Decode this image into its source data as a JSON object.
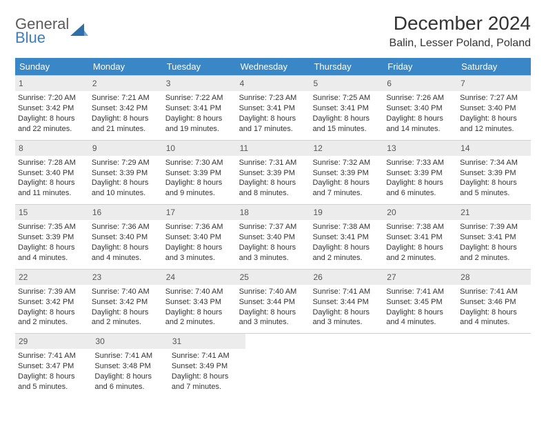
{
  "brand": {
    "line1": "General",
    "line2": "Blue"
  },
  "logo_colors": {
    "triangle": "#2f6fa8",
    "text_gray": "#5a5a5a",
    "text_blue": "#3a7fbf"
  },
  "title": "December 2024",
  "location": "Balin, Lesser Poland, Poland",
  "header_bg": "#3a87c7",
  "daynum_bg": "#ececec",
  "weekdays": [
    "Sunday",
    "Monday",
    "Tuesday",
    "Wednesday",
    "Thursday",
    "Friday",
    "Saturday"
  ],
  "weeks": [
    [
      {
        "n": "1",
        "sr": "Sunrise: 7:20 AM",
        "ss": "Sunset: 3:42 PM",
        "d1": "Daylight: 8 hours",
        "d2": "and 22 minutes."
      },
      {
        "n": "2",
        "sr": "Sunrise: 7:21 AM",
        "ss": "Sunset: 3:42 PM",
        "d1": "Daylight: 8 hours",
        "d2": "and 21 minutes."
      },
      {
        "n": "3",
        "sr": "Sunrise: 7:22 AM",
        "ss": "Sunset: 3:41 PM",
        "d1": "Daylight: 8 hours",
        "d2": "and 19 minutes."
      },
      {
        "n": "4",
        "sr": "Sunrise: 7:23 AM",
        "ss": "Sunset: 3:41 PM",
        "d1": "Daylight: 8 hours",
        "d2": "and 17 minutes."
      },
      {
        "n": "5",
        "sr": "Sunrise: 7:25 AM",
        "ss": "Sunset: 3:41 PM",
        "d1": "Daylight: 8 hours",
        "d2": "and 15 minutes."
      },
      {
        "n": "6",
        "sr": "Sunrise: 7:26 AM",
        "ss": "Sunset: 3:40 PM",
        "d1": "Daylight: 8 hours",
        "d2": "and 14 minutes."
      },
      {
        "n": "7",
        "sr": "Sunrise: 7:27 AM",
        "ss": "Sunset: 3:40 PM",
        "d1": "Daylight: 8 hours",
        "d2": "and 12 minutes."
      }
    ],
    [
      {
        "n": "8",
        "sr": "Sunrise: 7:28 AM",
        "ss": "Sunset: 3:40 PM",
        "d1": "Daylight: 8 hours",
        "d2": "and 11 minutes."
      },
      {
        "n": "9",
        "sr": "Sunrise: 7:29 AM",
        "ss": "Sunset: 3:39 PM",
        "d1": "Daylight: 8 hours",
        "d2": "and 10 minutes."
      },
      {
        "n": "10",
        "sr": "Sunrise: 7:30 AM",
        "ss": "Sunset: 3:39 PM",
        "d1": "Daylight: 8 hours",
        "d2": "and 9 minutes."
      },
      {
        "n": "11",
        "sr": "Sunrise: 7:31 AM",
        "ss": "Sunset: 3:39 PM",
        "d1": "Daylight: 8 hours",
        "d2": "and 8 minutes."
      },
      {
        "n": "12",
        "sr": "Sunrise: 7:32 AM",
        "ss": "Sunset: 3:39 PM",
        "d1": "Daylight: 8 hours",
        "d2": "and 7 minutes."
      },
      {
        "n": "13",
        "sr": "Sunrise: 7:33 AM",
        "ss": "Sunset: 3:39 PM",
        "d1": "Daylight: 8 hours",
        "d2": "and 6 minutes."
      },
      {
        "n": "14",
        "sr": "Sunrise: 7:34 AM",
        "ss": "Sunset: 3:39 PM",
        "d1": "Daylight: 8 hours",
        "d2": "and 5 minutes."
      }
    ],
    [
      {
        "n": "15",
        "sr": "Sunrise: 7:35 AM",
        "ss": "Sunset: 3:39 PM",
        "d1": "Daylight: 8 hours",
        "d2": "and 4 minutes."
      },
      {
        "n": "16",
        "sr": "Sunrise: 7:36 AM",
        "ss": "Sunset: 3:40 PM",
        "d1": "Daylight: 8 hours",
        "d2": "and 4 minutes."
      },
      {
        "n": "17",
        "sr": "Sunrise: 7:36 AM",
        "ss": "Sunset: 3:40 PM",
        "d1": "Daylight: 8 hours",
        "d2": "and 3 minutes."
      },
      {
        "n": "18",
        "sr": "Sunrise: 7:37 AM",
        "ss": "Sunset: 3:40 PM",
        "d1": "Daylight: 8 hours",
        "d2": "and 3 minutes."
      },
      {
        "n": "19",
        "sr": "Sunrise: 7:38 AM",
        "ss": "Sunset: 3:41 PM",
        "d1": "Daylight: 8 hours",
        "d2": "and 2 minutes."
      },
      {
        "n": "20",
        "sr": "Sunrise: 7:38 AM",
        "ss": "Sunset: 3:41 PM",
        "d1": "Daylight: 8 hours",
        "d2": "and 2 minutes."
      },
      {
        "n": "21",
        "sr": "Sunrise: 7:39 AM",
        "ss": "Sunset: 3:41 PM",
        "d1": "Daylight: 8 hours",
        "d2": "and 2 minutes."
      }
    ],
    [
      {
        "n": "22",
        "sr": "Sunrise: 7:39 AM",
        "ss": "Sunset: 3:42 PM",
        "d1": "Daylight: 8 hours",
        "d2": "and 2 minutes."
      },
      {
        "n": "23",
        "sr": "Sunrise: 7:40 AM",
        "ss": "Sunset: 3:42 PM",
        "d1": "Daylight: 8 hours",
        "d2": "and 2 minutes."
      },
      {
        "n": "24",
        "sr": "Sunrise: 7:40 AM",
        "ss": "Sunset: 3:43 PM",
        "d1": "Daylight: 8 hours",
        "d2": "and 2 minutes."
      },
      {
        "n": "25",
        "sr": "Sunrise: 7:40 AM",
        "ss": "Sunset: 3:44 PM",
        "d1": "Daylight: 8 hours",
        "d2": "and 3 minutes."
      },
      {
        "n": "26",
        "sr": "Sunrise: 7:41 AM",
        "ss": "Sunset: 3:44 PM",
        "d1": "Daylight: 8 hours",
        "d2": "and 3 minutes."
      },
      {
        "n": "27",
        "sr": "Sunrise: 7:41 AM",
        "ss": "Sunset: 3:45 PM",
        "d1": "Daylight: 8 hours",
        "d2": "and 4 minutes."
      },
      {
        "n": "28",
        "sr": "Sunrise: 7:41 AM",
        "ss": "Sunset: 3:46 PM",
        "d1": "Daylight: 8 hours",
        "d2": "and 4 minutes."
      }
    ],
    [
      {
        "n": "29",
        "sr": "Sunrise: 7:41 AM",
        "ss": "Sunset: 3:47 PM",
        "d1": "Daylight: 8 hours",
        "d2": "and 5 minutes."
      },
      {
        "n": "30",
        "sr": "Sunrise: 7:41 AM",
        "ss": "Sunset: 3:48 PM",
        "d1": "Daylight: 8 hours",
        "d2": "and 6 minutes."
      },
      {
        "n": "31",
        "sr": "Sunrise: 7:41 AM",
        "ss": "Sunset: 3:49 PM",
        "d1": "Daylight: 8 hours",
        "d2": "and 7 minutes."
      },
      null,
      null,
      null,
      null
    ]
  ]
}
